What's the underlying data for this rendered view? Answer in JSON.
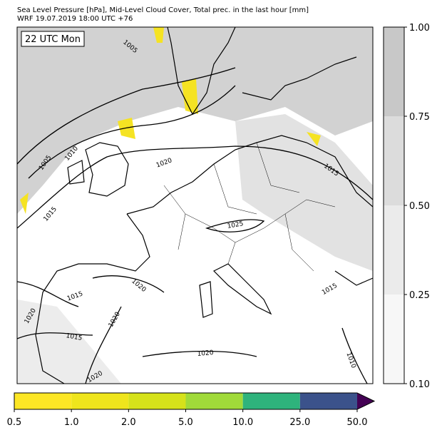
{
  "title": [
    "Sea Level Pressure [hPa], Mid-Level Cloud Cover, Total prec. in the last hour [mm]",
    "WRF 19.07.2019 18:00 UTC +76"
  ],
  "time_label": "22 UTC Mon",
  "isobar_labels": [
    1005,
    1005,
    1010,
    1015,
    1020,
    1025,
    1015,
    1015,
    1020,
    1020,
    1020,
    1015,
    1020,
    1010,
    1015,
    1020
  ],
  "cloud_colorbar": {
    "ticks": [
      {
        "value": 0.1,
        "label": "0.10"
      },
      {
        "value": 0.25,
        "label": "0.25"
      },
      {
        "value": 0.5,
        "label": "0.50"
      },
      {
        "value": 0.75,
        "label": "0.75"
      },
      {
        "value": 1,
        "label": "1.00"
      }
    ],
    "colors": [
      "#f7f7f7",
      "#ebebeb",
      "#dcdcdc",
      "#c8c8c8"
    ]
  },
  "precip_colorbar": {
    "ticks": [
      0.5,
      {
        "value": 1,
        "label": "1.0"
      },
      {
        "value": 2,
        "label": "2.0"
      },
      {
        "value": 5,
        "label": "5.0"
      },
      {
        "value": 10,
        "label": "10.0"
      },
      {
        "value": 25,
        "label": "25.0"
      },
      {
        "value": 50,
        "label": "50.0"
      }
    ],
    "colors": [
      "#fde725",
      "#efe51c",
      "#d6e21a",
      "#a0da39",
      "#2eb37c",
      "#3b528b"
    ],
    "extend_color": "#440154"
  }
}
